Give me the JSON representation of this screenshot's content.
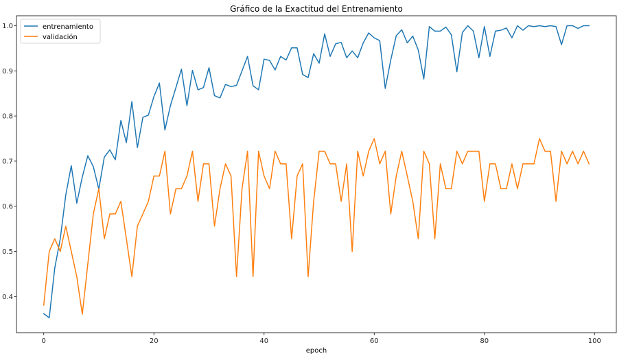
{
  "chart_data": {
    "type": "line",
    "title": "Gráfico de la Exactitud del Entrenamiento",
    "xlabel": "epoch",
    "ylabel": "",
    "xlim": [
      -4.95,
      103.95
    ],
    "ylim": [
      0.32,
      1.022
    ],
    "xticks": [
      0,
      20,
      40,
      60,
      80,
      100
    ],
    "yticks": [
      0.4,
      0.5,
      0.6,
      0.7,
      0.8,
      0.9,
      1.0
    ],
    "ytick_labels": [
      "0.4",
      "0.5",
      "0.6",
      "0.7",
      "0.8",
      "0.9",
      "1.0"
    ],
    "legend_position": "upper-left",
    "grid": false,
    "x": [
      0,
      1,
      2,
      3,
      4,
      5,
      6,
      7,
      8,
      9,
      10,
      11,
      12,
      13,
      14,
      15,
      16,
      17,
      18,
      19,
      20,
      21,
      22,
      23,
      24,
      25,
      26,
      27,
      28,
      29,
      30,
      31,
      32,
      33,
      34,
      35,
      36,
      37,
      38,
      39,
      40,
      41,
      42,
      43,
      44,
      45,
      46,
      47,
      48,
      49,
      50,
      51,
      52,
      53,
      54,
      55,
      56,
      57,
      58,
      59,
      60,
      61,
      62,
      63,
      64,
      65,
      66,
      67,
      68,
      69,
      70,
      71,
      72,
      73,
      74,
      75,
      76,
      77,
      78,
      79,
      80,
      81,
      82,
      83,
      84,
      85,
      86,
      87,
      88,
      89,
      90,
      91,
      92,
      93,
      94,
      95,
      96,
      97,
      98,
      99
    ],
    "series": [
      {
        "name": "entrenamiento",
        "color": "#1f77b4",
        "values": [
          0.362,
          0.353,
          0.463,
          0.528,
          0.625,
          0.69,
          0.607,
          0.665,
          0.712,
          0.688,
          0.638,
          0.709,
          0.725,
          0.703,
          0.79,
          0.741,
          0.832,
          0.73,
          0.797,
          0.802,
          0.843,
          0.873,
          0.769,
          0.823,
          0.863,
          0.904,
          0.823,
          0.901,
          0.858,
          0.863,
          0.907,
          0.845,
          0.84,
          0.87,
          0.865,
          0.868,
          0.9,
          0.932,
          0.867,
          0.858,
          0.926,
          0.923,
          0.902,
          0.932,
          0.924,
          0.951,
          0.951,
          0.892,
          0.885,
          0.938,
          0.917,
          0.982,
          0.932,
          0.96,
          0.963,
          0.929,
          0.944,
          0.929,
          0.962,
          0.984,
          0.973,
          0.967,
          0.861,
          0.924,
          0.978,
          0.991,
          0.962,
          0.977,
          0.946,
          0.882,
          0.998,
          0.988,
          0.988,
          0.997,
          0.98,
          0.898,
          0.985,
          1.0,
          0.988,
          0.929,
          0.998,
          0.932,
          0.988,
          0.99,
          0.995,
          0.973,
          1.0,
          0.99,
          1.0,
          0.998,
          1.0,
          0.998,
          1.0,
          0.998,
          0.958,
          1.0,
          1.0,
          0.994,
          1.0,
          1.0
        ]
      },
      {
        "name": "validación",
        "color": "#ff7f0e",
        "values": [
          0.381,
          0.5,
          0.528,
          0.5,
          0.556,
          0.5,
          0.444,
          0.361,
          0.472,
          0.583,
          0.639,
          0.528,
          0.583,
          0.583,
          0.611,
          0.528,
          0.444,
          0.556,
          0.583,
          0.611,
          0.667,
          0.667,
          0.722,
          0.583,
          0.639,
          0.639,
          0.667,
          0.722,
          0.611,
          0.694,
          0.694,
          0.556,
          0.639,
          0.694,
          0.667,
          0.444,
          0.639,
          0.722,
          0.444,
          0.722,
          0.667,
          0.639,
          0.722,
          0.694,
          0.694,
          0.528,
          0.667,
          0.694,
          0.444,
          0.611,
          0.722,
          0.722,
          0.694,
          0.694,
          0.611,
          0.694,
          0.5,
          0.722,
          0.667,
          0.722,
          0.75,
          0.694,
          0.722,
          0.583,
          0.667,
          0.722,
          0.667,
          0.611,
          0.528,
          0.722,
          0.694,
          0.528,
          0.694,
          0.639,
          0.639,
          0.722,
          0.694,
          0.722,
          0.722,
          0.722,
          0.611,
          0.694,
          0.694,
          0.639,
          0.639,
          0.694,
          0.639,
          0.694,
          0.694,
          0.694,
          0.75,
          0.722,
          0.722,
          0.611,
          0.722,
          0.694,
          0.722,
          0.694,
          0.722,
          0.694
        ]
      }
    ]
  }
}
